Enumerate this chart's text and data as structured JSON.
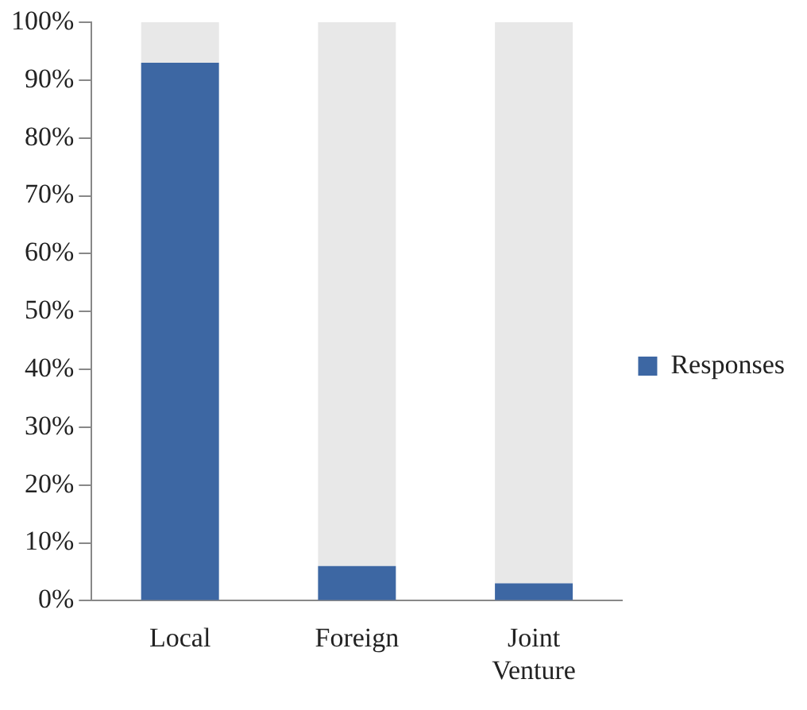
{
  "chart_data": {
    "type": "bar",
    "stacked": true,
    "categories": [
      "Local",
      "Foreign",
      "Joint Venture"
    ],
    "series": [
      {
        "name": "Responses",
        "color": "#3d67a3",
        "values": [
          93,
          6,
          3
        ]
      },
      {
        "color": "#e8e8e8",
        "values": [
          7,
          94,
          97
        ]
      }
    ],
    "ylim": [
      0,
      100
    ],
    "yticks": [
      {
        "value": 0,
        "label": "0%"
      },
      {
        "value": 10,
        "label": "10%"
      },
      {
        "value": 20,
        "label": "20%"
      },
      {
        "value": 30,
        "label": "30%"
      },
      {
        "value": 40,
        "label": "40%"
      },
      {
        "value": 50,
        "label": "50%"
      },
      {
        "value": 60,
        "label": "60%"
      },
      {
        "value": 70,
        "label": "70%"
      },
      {
        "value": 80,
        "label": "80%"
      },
      {
        "value": 90,
        "label": "90%"
      },
      {
        "value": 100,
        "label": "100%"
      }
    ],
    "grid": false,
    "legend": "right"
  }
}
